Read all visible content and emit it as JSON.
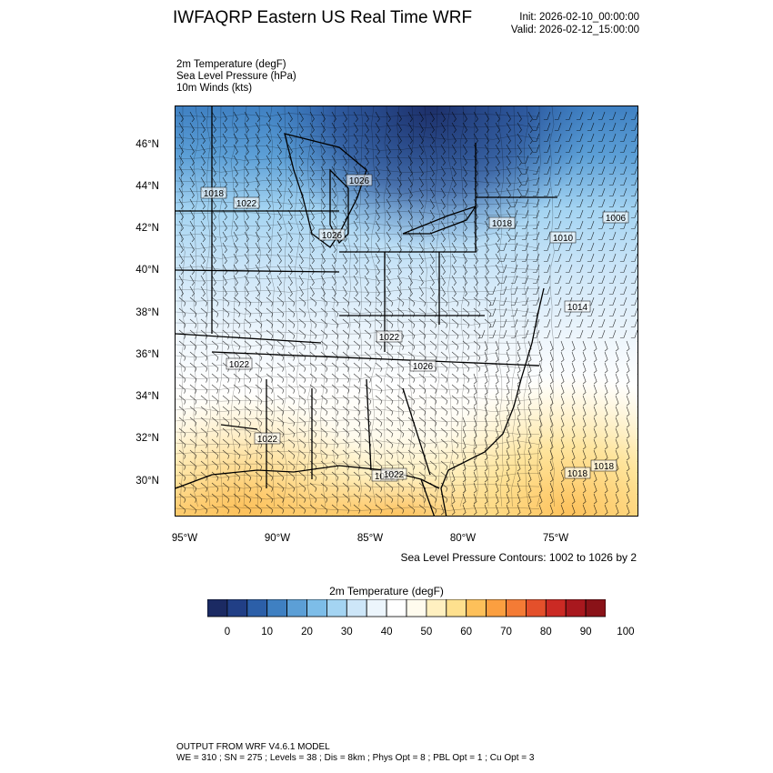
{
  "header": {
    "title": "IWFAQRP Eastern US Real Time WRF",
    "init": "Init: 2026-02-10_00:00:00",
    "valid": "Valid: 2026-02-12_15:00:00"
  },
  "variables": [
    "2m Temperature   (degF)",
    "Sea Level Pressure   (hPa)",
    "10m Winds   (kts)"
  ],
  "axes": {
    "lat_labels": [
      "46°N",
      "44°N",
      "42°N",
      "40°N",
      "38°N",
      "36°N",
      "34°N",
      "32°N",
      "30°N"
    ],
    "lon_labels": [
      "95°W",
      "90°W",
      "85°W",
      "80°W",
      "75°W"
    ]
  },
  "pressure_labels": [
    "1018",
    "1022",
    "1026",
    "1026",
    "1018",
    "1006",
    "1010",
    "1018",
    "1014",
    "1022",
    "1022",
    "1026",
    "1022",
    "1022",
    "1022",
    "1018"
  ],
  "slp_note": "Sea Level Pressure Contours: 1002 to 1026 by 2",
  "colorbar": {
    "title": "2m Temperature  (degF)",
    "ticks": [
      "0",
      "10",
      "20",
      "30",
      "40",
      "50",
      "60",
      "70",
      "80",
      "90",
      "100"
    ],
    "colors": [
      "#1b2a63",
      "#213f86",
      "#2c5fa8",
      "#3f80c2",
      "#5c9fd6",
      "#7dbde8",
      "#a4d4f2",
      "#cde6f8",
      "#ecf5fc",
      "#ffffff",
      "#fffbee",
      "#fff0c0",
      "#fee08e",
      "#fdc05a",
      "#fb9f40",
      "#f47b35",
      "#e4502b",
      "#cb2a24",
      "#a8181e",
      "#8a1218"
    ]
  },
  "footer": {
    "line1": "OUTPUT FROM WRF V4.6.1 MODEL",
    "line2": "WE = 310 ; SN = 275 ; Levels = 38 ; Dis = 8km ; Phys Opt = 8 ; PBL Opt = 1 ; Cu Opt = 3"
  }
}
